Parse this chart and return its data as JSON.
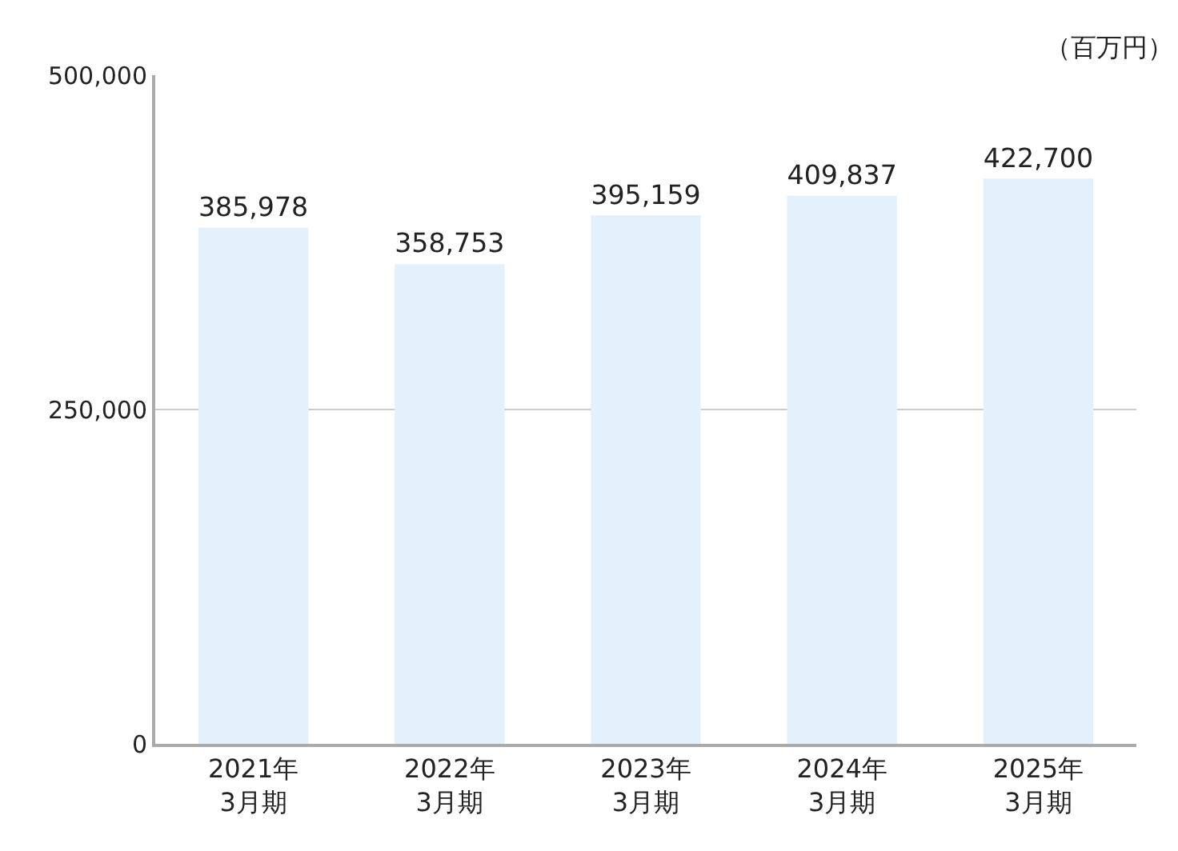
{
  "chart_data": {
    "type": "bar",
    "ylabel": "（百万円）",
    "categories": [
      "2021年\n3月期",
      "2022年\n3月期",
      "2023年\n3月期",
      "2024年\n3月期",
      "2025年\n3月期"
    ],
    "values": [
      385978,
      358753,
      395159,
      409837,
      422700
    ],
    "value_labels": [
      "385,978",
      "358,753",
      "395,159",
      "409,837",
      "422,700"
    ],
    "color": "#e3f1fd",
    "ylim": [
      0,
      500000
    ],
    "yticks": [
      0,
      {
        "value": 250000,
        "label": "250,000"
      },
      {
        "value": 500000,
        "label": "500,000"
      }
    ],
    "grid": "y",
    "legend": false
  }
}
